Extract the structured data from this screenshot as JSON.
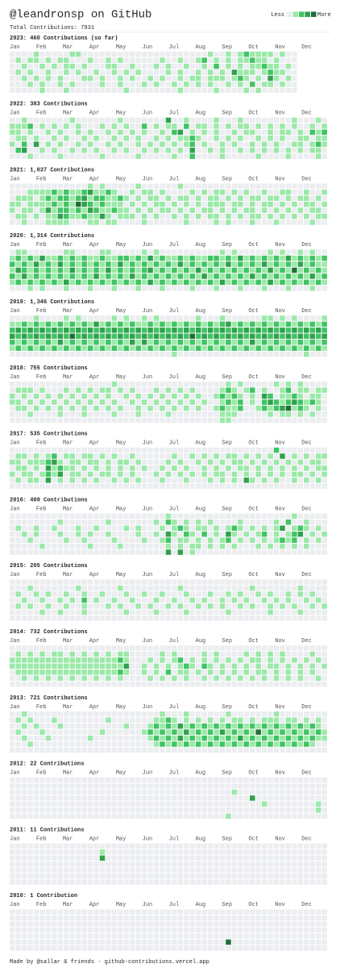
{
  "header": {
    "title": "@leandronsp on GitHub",
    "total": "Total Contributions: 7931",
    "legend_less": "Less",
    "legend_more": "More"
  },
  "colors": [
    "#ebedf0",
    "#9be9a8",
    "#40c463",
    "#30a14e",
    "#216e39"
  ],
  "months": [
    "Jan",
    "Feb",
    "Mar",
    "Apr",
    "May",
    "Jun",
    "Jul",
    "Aug",
    "Sep",
    "Oct",
    "Nov",
    "Dec"
  ],
  "years": [
    {
      "title": "2023: 460 Contributions (so far)",
      "rows": [
        "000010000011000000000000000000000100101211110100",
        "010110101100010010100000010010012010101121101000",
        "001001010110100011001000101001001020101011211010",
        "010100100101001001010100001010010101031110121100",
        "001010101000110100101001010010110111012101031010",
        "000101001010000100100010100101010100101020110100",
        "000001000100000000010000000010000010000101000000"
      ]
    },
    {
      "title": "2022: 383 Contributions",
      "rows": [
        "00100000001000000010000000300100001000100000000100010",
        "11120101010100010101002010110201101010110101010100101",
        "11010010100101001010101001023010101001011001011010212",
        "01101001010010100101010010101121001010100101010011011",
        "10203010100101001010010101010120100101001010100110121",
        "02300101001010100101001010101030010100101010101010110",
        "00010000100000010000010000010020000100000100001000010"
      ]
    },
    {
      "title": "2021: 1,037 Contributions",
      "rows": [
        "00000000000001010000010000001000000000000000000000000",
        "00011112121123112100101101000010101101010010011001001",
        "01110121221231221121010110101101011010101101101011010",
        "11011112121432121110101011010101011101101011010101101",
        "10110131221213211211010101101010110101011010101010110",
        "01101011321121131011101010010101011010101101010101011",
        "00100011110001101100001000000100001010001000100000100"
      ]
    },
    {
      "title": "2020: 1,314 Contributions",
      "rows": [
        "01100000011000011000001010000000000101000001010010100",
        "12121311212121121122121312112121122121312121213121212",
        "21213121312121212131212121213121212131212131212131211",
        "13212121213121213121212312121213121212121213121412121",
        "21312121212121312121312121212121312121213121212121312",
        "12121212131212121212121312121212121312121213121212121",
        "00010100010001000100010001000010001000100010001000100"
      ]
    },
    {
      "title": "2019: 1,346 Contributions",
      "rows": [
        "00001000010100000101001010000001000100000011010100001",
        "11212121212121312121211212121212121231212121212121212",
        "23232323232323232323232323232323232323232323232323232",
        "32323232324232323232323232323242323232323232323232323",
        "21212121312121212121313121212121212121213121212121212",
        "12121212121212121212121212121212121212121212121212121",
        "00000000000000000000000000010000000000000000000001000"
      ]
    },
    {
      "title": "2018: 755 Contributions",
      "rows": [
        "00000000000000000100000000000000000010100000101010000",
        "01110100010101011010100010101010000121012010012011011",
        "10101010101010101001010101010101001212101032011210110",
        "11010101010101010100101010101010100121201023212321210",
        "01101010101010101010010101010101001211200121234121010",
        "00010000100010000100010000100000000111000001011010100",
        "00000000000000000000000000000000000110000000000000000"
      ]
    },
    {
      "title": "2017: 535 Contributions",
      "rows": [
        "00000000000000000000000000000000000000000000200000000",
        "01101012011011010100100000010010101011010101030101011",
        "11011123101101101011010000101001010101101010101010110",
        "01101031211010101010101001010100101010110101010101011",
        "10110121301101011010100010101010101101010101010110101",
        "01011030101010100101010001000100010101031010100101010",
        "00000000000000000000000000000000000000000000000000000"
      ]
    },
    {
      "title": "2016: 409 Contributions",
      "rows": [
        "00000000000000000000000000100000000000000000000100000",
        "00000000100000001000000010210101010000100000102001000",
        "01001001000100100001010001012101101012101010130121010",
        "00101000100101001000010010310210201031010120101230101",
        "00010000010010000100001001201101010120101010121201010",
        "00000100000001000010000000101011010101000101010101000",
        "00000000000000000000000000303010000000000000000000000"
      ]
    },
    {
      "title": "2015: 205 Contributions",
      "rows": [
        "00000000000000000000000000000000000000000000000000000",
        "00010000000100000010000000001000000000001000000010000",
        "01001010010010010001001001000100010010100101001010100",
        "00100100101020100100100010010010100101010010101001010",
        "01010010010010001010010100101001010100101001010100101",
        "00000100100010000001000010000100000010000001000010000",
        "00000000000000000000000000000000000000000000000000000"
      ]
    },
    {
      "title": "2014: 732 Contributions",
      "rows": [
        "00000000000000000000000000000000000000000000000000000",
        "01010101101010101011000001010000101000010101010000100",
        "11111111111111111121000101012010101010101101010101010",
        "11111111111111111113001010101210210101010101101010101",
        "01111111111111111121001010201101010101010110101010100",
        "00101010101010101010000101010100101010101010101010010",
        "00000000000000000000000000000000000000000000000000000"
      ]
    },
    {
      "title": "2013: 721 Contributions",
      "rows": [
        "00100000000000000000000001000100000010000000100000000",
        "01010001000000001000000011210101010101101011101101010",
        "00101000100000000001000121213121212121212121212121210",
        "01000100000000010000001212121312121312121412121212121",
        "00100010000001000000000121213121212121312121212121211",
        "00010000000000000000000012121212121212121212121212100",
        "00000000000000000000000000000000000000000000000000000"
      ]
    },
    {
      "title": "2012: 22 Contributions",
      "rows": [
        "00000000000000000000000000000000000000000000000000000",
        "00000000000000000000000000000000000000000000000000000",
        "00000000000000000000000000000000000001000000000000000",
        "00000000000000000000000000000000000000003000000000000",
        "00000000000000000000000000000000000000000010000000010",
        "00000000000000000000000000000000000000000000000000010",
        "00000000000000000000000000000000000010000000000000000"
      ]
    },
    {
      "title": "2011: 11 Contributions",
      "rows": [
        "00000000000000000000000000000000000000000000000000000",
        "00000000000000010000000000000000000000000000000000000",
        "00000000000000030000000000000000000000000000000000000",
        "00000000000000000000000000000000000000000000000000000",
        "00000000000000000000000000000000000000000000000000000",
        "00000000000000000000000000000000000000000000000000000",
        "00000000000000000000000000000000000000000000000000000"
      ]
    },
    {
      "title": "2010: 1 Contribution",
      "rows": [
        "00000000000000000000000000000000000000000000000000000",
        "00000000000000000000000000000000000000000000000000000",
        "00000000000000000000000000000000000000000000000000000",
        "00000000000000000000000000000000000000000000000000000",
        "00000000000000000000000000000000000000000000000000000",
        "00000000000000000000000000000000000040000000000000000",
        "00000000000000000000000000000000000000000000000000000"
      ]
    }
  ],
  "footer": "Made by @sallar & friends · github-contributions.vercel.app"
}
